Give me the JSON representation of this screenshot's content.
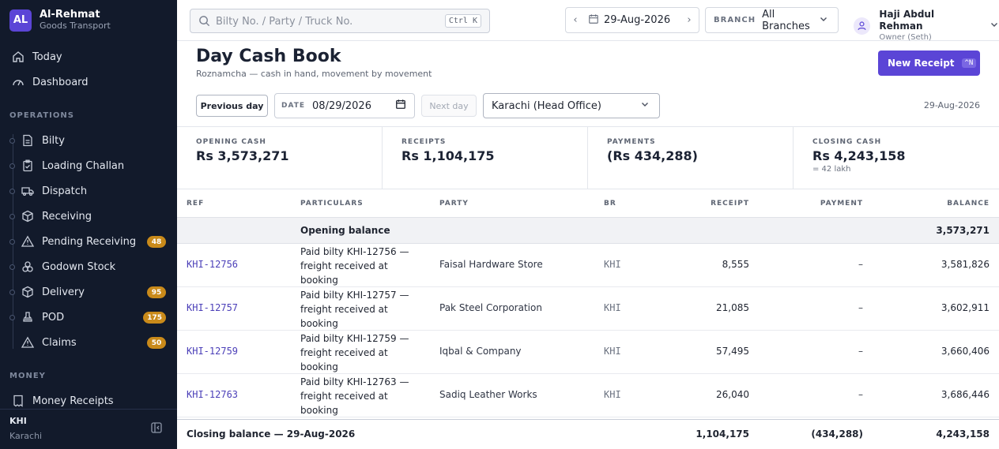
{
  "brand": {
    "initials": "AL",
    "name": "Al-Rehmat",
    "subtitle": "Goods Transport"
  },
  "nav": {
    "top": [
      {
        "label": "Today",
        "icon": "home-icon"
      },
      {
        "label": "Dashboard",
        "icon": "gauge-icon"
      }
    ],
    "operations_heading": "OPERATIONS",
    "operations": [
      {
        "label": "Bilty",
        "icon": "document-icon",
        "badge": ""
      },
      {
        "label": "Loading Challan",
        "icon": "clipboard-icon",
        "badge": ""
      },
      {
        "label": "Dispatch",
        "icon": "truck-icon",
        "badge": ""
      },
      {
        "label": "Receiving",
        "icon": "package-icon",
        "badge": ""
      },
      {
        "label": "Pending Receiving",
        "icon": "warning-icon",
        "badge": "48"
      },
      {
        "label": "Godown Stock",
        "icon": "boxes-icon",
        "badge": ""
      },
      {
        "label": "Delivery",
        "icon": "box-check-icon",
        "badge": "95"
      },
      {
        "label": "POD",
        "icon": "stamp-icon",
        "badge": "175"
      },
      {
        "label": "Claims",
        "icon": "warning-icon",
        "badge": "50"
      }
    ],
    "money_heading": "MONEY",
    "money": [
      {
        "label": "Money Receipts",
        "icon": "receipt-icon"
      }
    ]
  },
  "sidebar_footer": {
    "code": "KHI",
    "city": "Karachi"
  },
  "topbar": {
    "search_placeholder": "Bilty No. / Party / Truck No.",
    "search_shortcut": "Ctrl K",
    "date": "29-Aug-2026",
    "branch_label": "BRANCH",
    "branch_value": "All Branches",
    "user_name": "Haji Abdul Rehman",
    "user_role": "Owner (Seth)"
  },
  "page": {
    "title": "Day Cash Book",
    "subtitle": "Roznamcha — cash in hand, movement by movement",
    "new_button": "New Receipt",
    "new_shortcut": "^N"
  },
  "filters": {
    "prev_label": "Previous day",
    "date_label": "DATE",
    "date_value": "08/29/2026",
    "next_label": "Next day",
    "branch": "Karachi (Head Office)",
    "date_display": "29-Aug-2026"
  },
  "stats": [
    {
      "label": "OPENING CASH",
      "value": "Rs 3,573,271",
      "sub": ""
    },
    {
      "label": "RECEIPTS",
      "value": "Rs 1,104,175",
      "sub": ""
    },
    {
      "label": "PAYMENTS",
      "value": "(Rs 434,288)",
      "sub": ""
    },
    {
      "label": "CLOSING CASH",
      "value": "Rs 4,243,158",
      "sub": "= 42 lakh"
    }
  ],
  "table": {
    "headers": {
      "ref": "REF",
      "particulars": "PARTICULARS",
      "party": "PARTY",
      "br": "BR",
      "receipt": "RECEIPT",
      "payment": "PAYMENT",
      "balance": "BALANCE"
    },
    "opening": {
      "label": "Opening balance",
      "balance": "3,573,271"
    },
    "rows": [
      {
        "ref": "KHI-12756",
        "particulars": "Paid bilty KHI-12756 — freight received at booking",
        "party": "Faisal Hardware Store",
        "br": "KHI",
        "receipt": "8,555",
        "payment": "–",
        "balance": "3,581,826"
      },
      {
        "ref": "KHI-12757",
        "particulars": "Paid bilty KHI-12757 — freight received at booking",
        "party": "Pak Steel Corporation",
        "br": "KHI",
        "receipt": "21,085",
        "payment": "–",
        "balance": "3,602,911"
      },
      {
        "ref": "KHI-12759",
        "particulars": "Paid bilty KHI-12759 — freight received at booking",
        "party": "Iqbal & Company",
        "br": "KHI",
        "receipt": "57,495",
        "payment": "–",
        "balance": "3,660,406"
      },
      {
        "ref": "KHI-12763",
        "particulars": "Paid bilty KHI-12763 — freight received at booking",
        "party": "Sadiq Leather Works",
        "br": "KHI",
        "receipt": "26,040",
        "payment": "–",
        "balance": "3,686,446"
      }
    ],
    "closing": {
      "label": "Closing balance — 29-Aug-2026",
      "receipt": "1,104,175",
      "payment": "(434,288)",
      "balance": "4,243,158"
    }
  },
  "colors": {
    "sidebar_bg": "#121a2b",
    "accent": "#5b45d6",
    "badge": "#c98a1a"
  }
}
